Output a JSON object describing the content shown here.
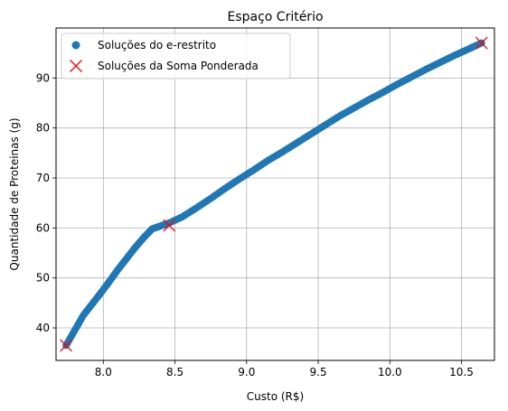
{
  "chart_data": {
    "type": "scatter",
    "title": "Espaço Critério",
    "xlabel": "Custo (R$)",
    "ylabel": "Quantidade de Proteinas (g)",
    "xlim": [
      7.67,
      10.73
    ],
    "ylim": [
      33.5,
      100.0
    ],
    "xticks": [
      8.0,
      8.5,
      9.0,
      9.5,
      10.0,
      10.5
    ],
    "xtick_labels": [
      "8.0",
      "8.5",
      "9.0",
      "9.5",
      "10.0",
      "10.5"
    ],
    "yticks": [
      40,
      50,
      60,
      70,
      80,
      90
    ],
    "ytick_labels": [
      "40",
      "50",
      "60",
      "70",
      "80",
      "90"
    ],
    "grid": true,
    "legend_position": "top-left",
    "colors": {
      "series1": "#1f77b4",
      "series2": "#ff0000",
      "series2_line": "#d62728"
    },
    "series": [
      {
        "name": "Soluções do e-restrito",
        "marker": "circle",
        "x": [
          7.74,
          7.8,
          7.86,
          7.92,
          7.98,
          8.04,
          8.1,
          8.16,
          8.22,
          8.28,
          8.34,
          8.4,
          8.46,
          8.55,
          8.65,
          8.75,
          8.85,
          8.95,
          9.05,
          9.15,
          9.25,
          9.35,
          9.45,
          9.55,
          9.65,
          9.75,
          9.85,
          9.95,
          10.05,
          10.15,
          10.25,
          10.35,
          10.45,
          10.55,
          10.64
        ],
        "y": [
          36.5,
          39.5,
          42.5,
          44.7,
          46.9,
          49.2,
          51.6,
          53.8,
          56.0,
          58.0,
          59.8,
          60.4,
          61.0,
          62.2,
          64.0,
          65.9,
          67.9,
          69.8,
          71.6,
          73.5,
          75.2,
          77.0,
          78.8,
          80.6,
          82.4,
          84.0,
          85.6,
          87.1,
          88.7,
          90.2,
          91.7,
          93.1,
          94.5,
          95.8,
          97.0
        ]
      },
      {
        "name": "Soluções da Soma Ponderada",
        "marker": "x",
        "x": [
          7.74,
          8.46,
          10.64
        ],
        "y": [
          36.5,
          60.5,
          97.0
        ]
      }
    ]
  }
}
